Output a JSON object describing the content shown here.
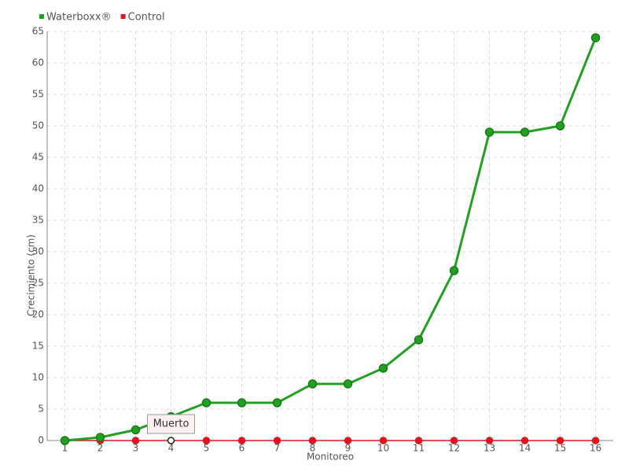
{
  "chart_data": {
    "type": "line",
    "x_label": "Monitoreo",
    "y_label": "Crecimiento (cm)",
    "categories": [
      "1",
      "2",
      "3",
      "4",
      "5",
      "6",
      "7",
      "8",
      "9",
      "10",
      "11",
      "12",
      "13",
      "14",
      "15",
      "16"
    ],
    "series": [
      {
        "name": "Waterboxx®",
        "color": "#22a022",
        "values": [
          0,
          0.5,
          1.7,
          3.8,
          6,
          6,
          6,
          9,
          9,
          11.5,
          16,
          27,
          49,
          49,
          50,
          64
        ]
      },
      {
        "name": "Control",
        "color": "#e0141e",
        "values": [
          0,
          0,
          0,
          0,
          0,
          0,
          0,
          0,
          0,
          0,
          0,
          0,
          0,
          0,
          0,
          0
        ]
      }
    ],
    "annotation": {
      "text": "Muerto",
      "category": "4"
    },
    "ylim": [
      0,
      65
    ],
    "yticks": [
      0,
      5,
      10,
      15,
      20,
      25,
      30,
      35,
      40,
      45,
      50,
      55,
      60,
      65
    ],
    "grid": true
  }
}
